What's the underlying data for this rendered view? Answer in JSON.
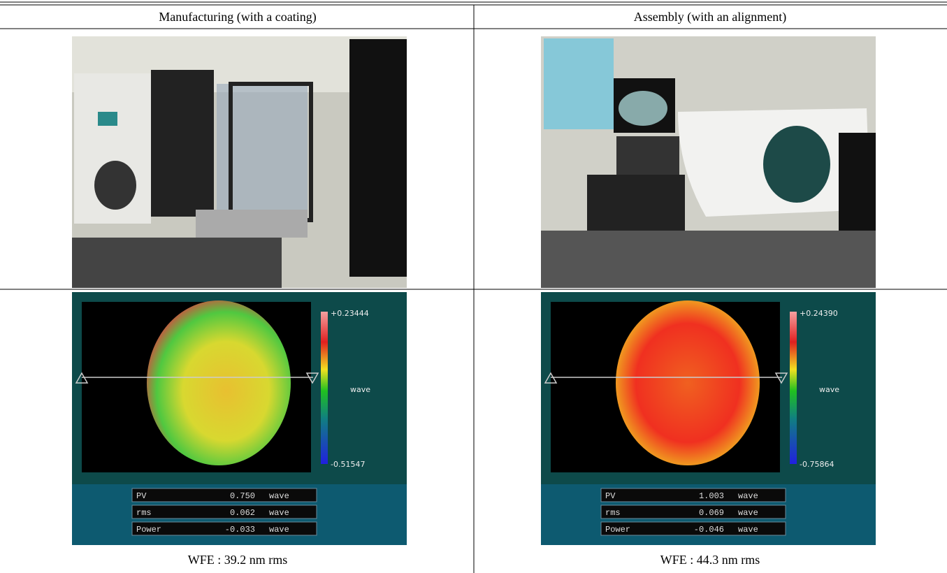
{
  "table": {
    "headers": [
      "Manufacturing (with a coating)",
      "Assembly (with an alignment)"
    ],
    "columns": [
      {
        "colorbar": {
          "max": "+0.23444",
          "unit": "wave",
          "min": "-0.51547"
        },
        "stats": [
          [
            "PV",
            "0.750",
            "wave"
          ],
          [
            "rms",
            "0.062",
            "wave"
          ],
          [
            "Power",
            "-0.033",
            "wave"
          ]
        ],
        "caption": "WFE : 39.2 nm rms"
      },
      {
        "colorbar": {
          "max": "+0.24390",
          "unit": "wave",
          "min": "-0.75864"
        },
        "stats": [
          [
            "PV",
            "1.003",
            "wave"
          ],
          [
            "rms",
            "0.069",
            "wave"
          ],
          [
            "Power",
            "-0.046",
            "wave"
          ]
        ],
        "caption": "WFE : 44.3 nm rms"
      }
    ]
  }
}
